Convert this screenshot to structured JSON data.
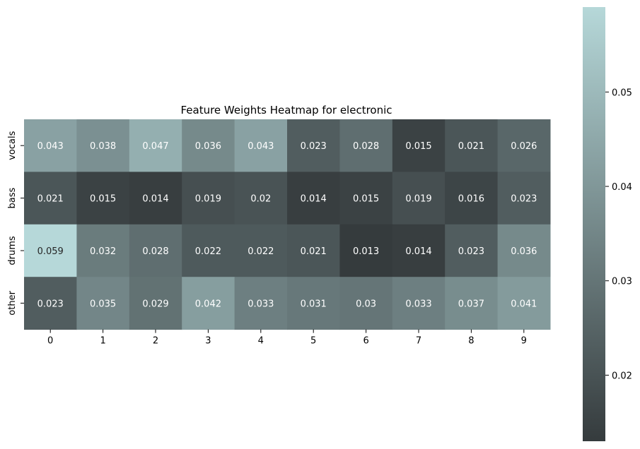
{
  "chart_data": {
    "type": "heatmap",
    "title": "Feature Weights Heatmap for electronic",
    "xlabel": "",
    "ylabel": "",
    "x_categories": [
      "0",
      "1",
      "2",
      "3",
      "4",
      "5",
      "6",
      "7",
      "8",
      "9"
    ],
    "y_categories": [
      "vocals",
      "bass",
      "drums",
      "other"
    ],
    "values": [
      [
        0.043,
        0.038,
        0.047,
        0.036,
        0.043,
        0.023,
        0.028,
        0.015,
        0.021,
        0.026
      ],
      [
        0.021,
        0.015,
        0.014,
        0.019,
        0.02,
        0.014,
        0.015,
        0.019,
        0.016,
        0.023
      ],
      [
        0.059,
        0.032,
        0.028,
        0.022,
        0.022,
        0.021,
        0.013,
        0.014,
        0.023,
        0.036
      ],
      [
        0.023,
        0.035,
        0.029,
        0.042,
        0.033,
        0.031,
        0.03,
        0.033,
        0.037,
        0.041
      ]
    ],
    "annotations": [
      [
        "0.043",
        "0.038",
        "0.047",
        "0.036",
        "0.043",
        "0.023",
        "0.028",
        "0.015",
        "0.021",
        "0.026"
      ],
      [
        "0.021",
        "0.015",
        "0.014",
        "0.019",
        "0.02",
        "0.014",
        "0.015",
        "0.019",
        "0.016",
        "0.023"
      ],
      [
        "0.059",
        "0.032",
        "0.028",
        "0.022",
        "0.022",
        "0.021",
        "0.013",
        "0.014",
        "0.023",
        "0.036"
      ],
      [
        "0.023",
        "0.035",
        "0.029",
        "0.042",
        "0.033",
        "0.031",
        "0.03",
        "0.033",
        "0.037",
        "0.041"
      ]
    ],
    "colorbar": {
      "range": [
        0.013,
        0.059
      ],
      "ticks": [
        0.02,
        0.03,
        0.04,
        0.05
      ],
      "tick_labels": [
        "0.02",
        "0.03",
        "0.04",
        "0.05"
      ],
      "color_low": "#353b3d",
      "color_high": "#b6d8d9"
    },
    "text_color_light": "#ffffff",
    "text_color_dark": "#262626",
    "grid": false,
    "legend": "none"
  }
}
